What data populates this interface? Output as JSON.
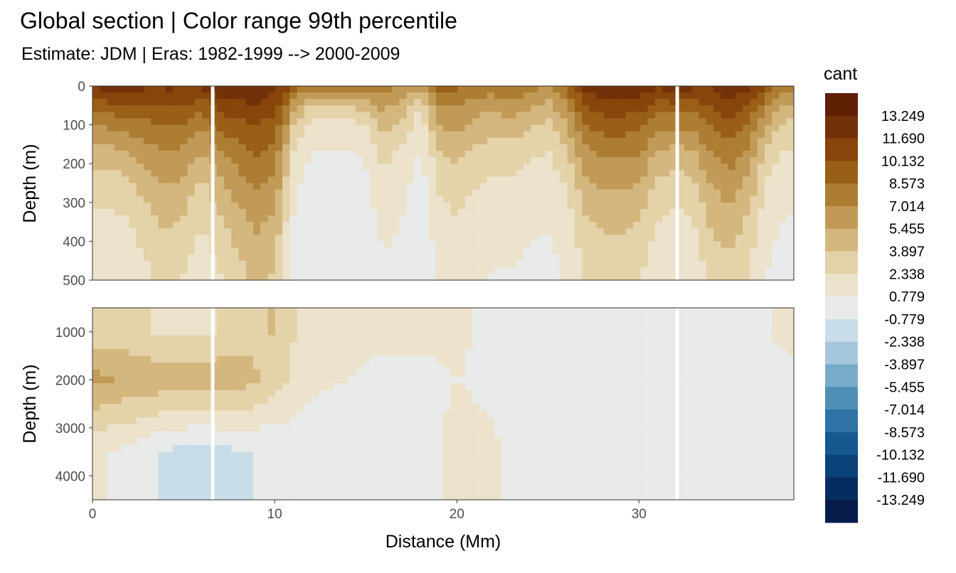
{
  "chart_data": {
    "type": "heatmap",
    "title": "Global section | Color range 99th percentile",
    "subtitle": "Estimate: JDM  | Eras: 1982-1999 --> 2000-2009",
    "xlabel": "Distance (Mm)",
    "xlim": [
      0,
      38.5
    ],
    "x_ticks": [
      "0",
      "10",
      "20",
      "30"
    ],
    "grid": true,
    "legend_position": "right",
    "panels": [
      {
        "ylabel": "Depth (m)",
        "ylim": [
          0,
          500
        ],
        "y_ticks": [
          "0",
          "100",
          "200",
          "300",
          "400",
          "500"
        ],
        "y_reversed": true
      },
      {
        "ylabel": "Depth (m)",
        "ylim": [
          500,
          4500
        ],
        "y_ticks": [
          "1000",
          "2000",
          "3000",
          "4000"
        ],
        "y_reversed": true
      }
    ],
    "gap_lines_x": [
      6.6,
      32.1
    ],
    "legend": {
      "title": "cant",
      "breaks": [
        "13.249",
        "11.690",
        "10.132",
        "8.573",
        "7.014",
        "5.455",
        "3.897",
        "2.338",
        "0.779",
        "-0.779",
        "-2.338",
        "-3.897",
        "-5.455",
        "-7.014",
        "-8.573",
        "-10.132",
        "-11.690",
        "-13.249"
      ],
      "colors": [
        "#5e1f03",
        "#723108",
        "#87450c",
        "#9a5f17",
        "#ad7d34",
        "#c29a58",
        "#d4b77e",
        "#e4d2a9",
        "#ede2cb",
        "#e8ebe9",
        "#c9dde9",
        "#a4c7db",
        "#78abc8",
        "#4f8fb6",
        "#2e73a5",
        "#155990",
        "#0b4279",
        "#072d60",
        "#051c4a"
      ]
    },
    "shallow_profile": {
      "x": [
        0,
        1,
        2,
        3,
        4,
        5,
        6,
        7,
        8,
        9,
        10,
        11,
        12,
        13,
        14,
        15,
        16,
        17,
        18,
        19,
        20,
        21,
        22,
        23,
        24,
        25,
        26,
        27,
        28,
        29,
        30,
        31,
        32,
        33,
        34,
        35,
        36,
        37,
        38
      ],
      "top_value": [
        12,
        13,
        13,
        12,
        12,
        12,
        12,
        13,
        13,
        13,
        12,
        10,
        8,
        9,
        10,
        9,
        8,
        7,
        6,
        9,
        9,
        8,
        8,
        9,
        8,
        7,
        9,
        12,
        13,
        13,
        13,
        12,
        13,
        12,
        12,
        13,
        12,
        10,
        8
      ],
      "e_fold_depth_m": [
        180,
        170,
        190,
        260,
        320,
        280,
        200,
        260,
        340,
        420,
        400,
        110,
        60,
        55,
        55,
        70,
        160,
        130,
        60,
        190,
        230,
        200,
        170,
        160,
        150,
        140,
        180,
        280,
        300,
        300,
        280,
        200,
        170,
        200,
        320,
        340,
        280,
        160,
        120
      ]
    },
    "deep_profile": {
      "x": [
        0,
        2,
        4,
        6,
        8,
        10,
        12,
        14,
        16,
        18,
        20,
        22,
        24,
        26,
        28,
        30,
        32,
        34,
        36,
        38
      ],
      "value_1000m": [
        3,
        3,
        2,
        2,
        3,
        4,
        1,
        1,
        1,
        1,
        1,
        0.5,
        0.3,
        0.3,
        0.3,
        0.3,
        0.3,
        0.3,
        0.5,
        1
      ],
      "value_2000m": [
        6,
        5,
        5,
        5,
        5,
        3,
        1,
        0.8,
        0.5,
        0.5,
        0.8,
        0.5,
        0.3,
        0.3,
        0.3,
        0.3,
        0.3,
        0.3,
        0.3,
        0.5
      ],
      "value_3500m": [
        1,
        0.5,
        -1,
        -1.5,
        -1,
        -0.5,
        0,
        0,
        0,
        0,
        1.2,
        1,
        0,
        0,
        0,
        0,
        0,
        0,
        0,
        0
      ]
    }
  }
}
